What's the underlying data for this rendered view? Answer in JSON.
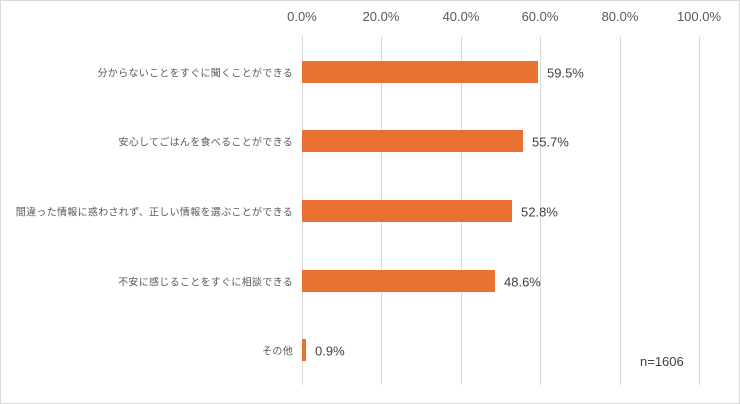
{
  "chart_data": {
    "type": "bar",
    "orientation": "horizontal",
    "title": "",
    "xlabel": "",
    "ylabel": "",
    "xlim": [
      0,
      100
    ],
    "x_ticks": [
      "0.0%",
      "20.0%",
      "40.0%",
      "60.0%",
      "80.0%",
      "100.0%"
    ],
    "x_axis_position": "top",
    "grid": true,
    "categories": [
      "分からないことをすぐに聞くことができる",
      "安心してごはんを食べることができる",
      "間違った情報に惑わされず、正しい情報を選ぶことができる",
      "不安に感じることをすぐに相談できる",
      "その他"
    ],
    "values": [
      59.5,
      55.7,
      52.8,
      48.6,
      0.9
    ],
    "value_labels": [
      "59.5%",
      "55.7%",
      "52.8%",
      "48.6%",
      "0.9%"
    ],
    "bar_color": "#e97132",
    "annotation": "n=1606",
    "legend": null
  }
}
